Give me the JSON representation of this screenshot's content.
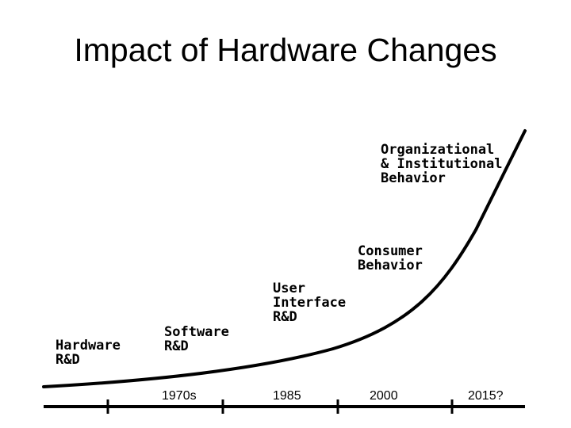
{
  "title": "Impact of Hardware Changes",
  "stages": [
    {
      "lines": [
        "Hardware",
        "R&D"
      ]
    },
    {
      "lines": [
        "Software",
        "R&D"
      ]
    },
    {
      "lines": [
        "User",
        "Interface",
        "R&D"
      ]
    },
    {
      "lines": [
        "Consumer",
        "Behavior"
      ]
    },
    {
      "lines": [
        "Organizational",
        "& Institutional",
        "Behavior"
      ]
    }
  ],
  "timeline": {
    "ticks": [
      "1970s",
      "1985",
      "2000",
      "2015?"
    ]
  },
  "colors": {
    "line": "#000000",
    "text": "#000000",
    "background": "#ffffff"
  }
}
